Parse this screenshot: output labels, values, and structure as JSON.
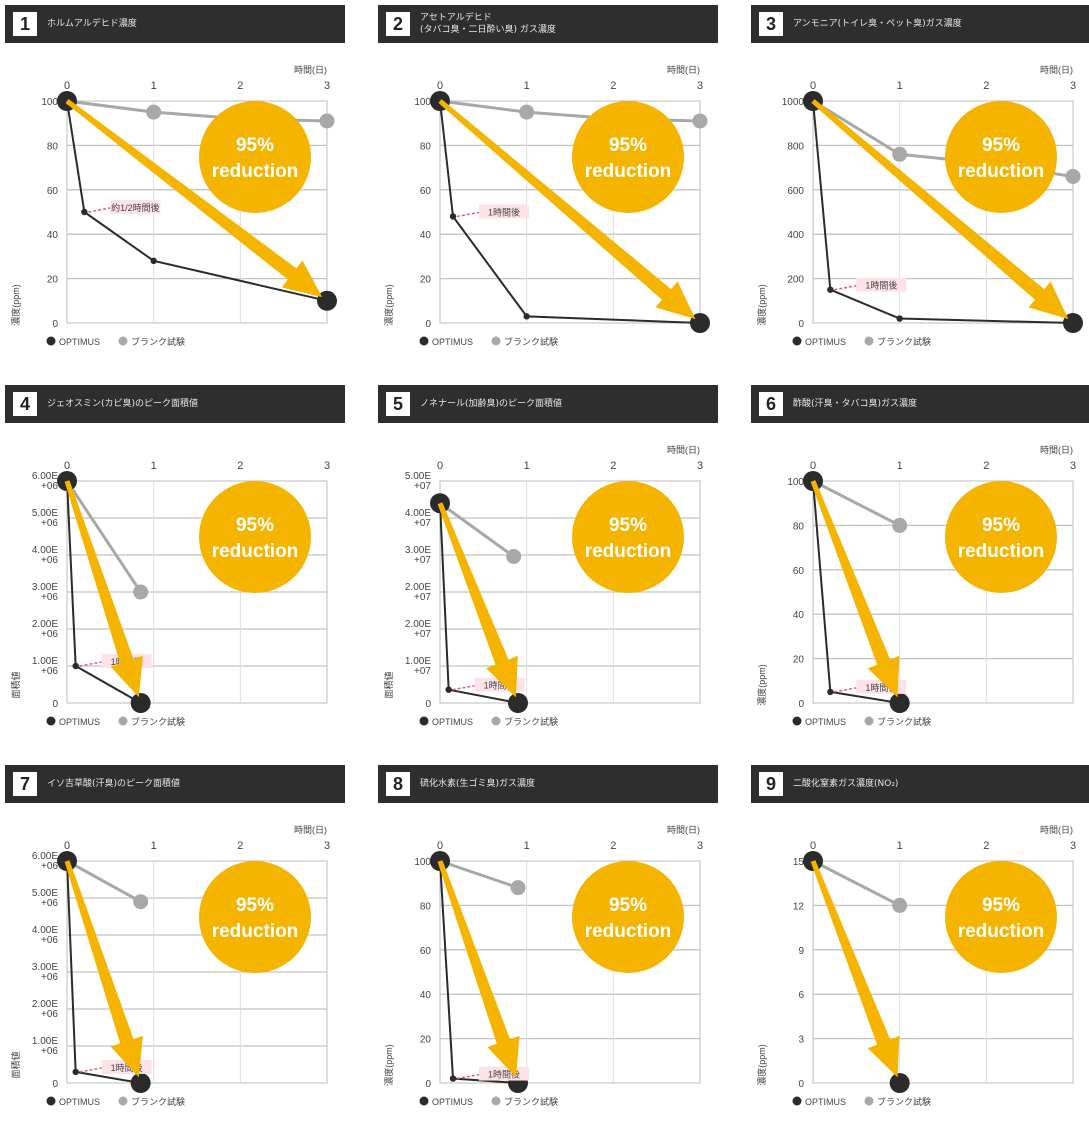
{
  "style": {
    "header_bg": "#2e2e2e",
    "optimus_color": "#2b2b2b",
    "blank_color": "#a8a8a8",
    "accent": "#f5b400",
    "annotation_color": "#e0607a"
  },
  "chart_data": [
    {
      "type": "line",
      "number": "1",
      "title": "ホルムアルデヒド濃度",
      "x": [
        0,
        1,
        2,
        3
      ],
      "x_label": "時間(日)",
      "y_ticks": [
        "100",
        "80",
        "60",
        "40",
        "20",
        "0"
      ],
      "ylim": [
        0,
        100
      ],
      "y_label": "濃度(ppm)",
      "series": [
        {
          "name": "OPTIMUS",
          "x": [
            0,
            0.2,
            1,
            3
          ],
          "values": [
            100,
            50,
            28,
            10
          ]
        },
        {
          "name": "ブランク試験",
          "x": [
            0,
            1,
            2,
            3
          ],
          "values": [
            100,
            95,
            92,
            91
          ]
        }
      ],
      "annotation": "約1/2時間後",
      "badge": [
        "95%",
        "reduction"
      ]
    },
    {
      "type": "line",
      "number": "2",
      "title": "アセトアルデヒド\n(タバコ臭・二日酔い臭) ガス濃度",
      "x": [
        0,
        1,
        2,
        3
      ],
      "x_label": "時間(日)",
      "y_ticks": [
        "100",
        "80",
        "60",
        "40",
        "20",
        "0"
      ],
      "ylim": [
        0,
        100
      ],
      "y_label": "濃度(ppm)",
      "series": [
        {
          "name": "OPTIMUS",
          "x": [
            0,
            0.15,
            1,
            3
          ],
          "values": [
            100,
            48,
            3,
            0
          ]
        },
        {
          "name": "ブランク試験",
          "x": [
            0,
            1,
            2,
            3
          ],
          "values": [
            100,
            95,
            92,
            91
          ]
        }
      ],
      "annotation": "1時間後",
      "badge": [
        "95%",
        "reduction"
      ]
    },
    {
      "type": "line",
      "number": "3",
      "title": "アンモニア(トイレ臭・ペット臭)ガス濃度",
      "x": [
        0,
        1,
        2,
        3
      ],
      "x_label": "時間(日)",
      "y_ticks": [
        "1000",
        "800",
        "600",
        "400",
        "200",
        "0"
      ],
      "ylim": [
        0,
        1000
      ],
      "y_label": "濃度(ppm)",
      "series": [
        {
          "name": "OPTIMUS",
          "x": [
            0,
            0.2,
            1,
            3
          ],
          "values": [
            1000,
            150,
            20,
            0
          ]
        },
        {
          "name": "ブランク試験",
          "x": [
            0,
            1,
            2,
            3
          ],
          "values": [
            1000,
            760,
            720,
            660
          ]
        }
      ],
      "annotation": "1時間後",
      "badge": [
        "95%",
        "reduction"
      ]
    },
    {
      "type": "line",
      "number": "4",
      "title": "ジェオスミン(カビ臭)のピーク面積値",
      "x": [
        0,
        1,
        2,
        3
      ],
      "x_label": "",
      "y_ticks": [
        "6.00E\n+06",
        "5.00E\n+06",
        "4.00E\n+06",
        "3.00E\n+06",
        "2.00E\n+06",
        "1.00E\n+06",
        "0"
      ],
      "ylim": [
        0,
        6000000
      ],
      "y_label": "面積値",
      "series": [
        {
          "name": "OPTIMUS",
          "x": [
            0,
            0.1,
            0.85
          ],
          "values": [
            6000000,
            1000000,
            0
          ]
        },
        {
          "name": "ブランク試験",
          "x": [
            0,
            0.85
          ],
          "values": [
            6000000,
            3000000
          ]
        }
      ],
      "annotation": "1時間後",
      "badge": [
        "95%",
        "reduction"
      ]
    },
    {
      "type": "line",
      "number": "5",
      "title": "ノネナール(加齢臭)のピーク面積値",
      "x": [
        0,
        1,
        2,
        3
      ],
      "x_label": "時間(日)",
      "y_ticks": [
        "5.00E\n+07",
        "4.00E\n+07",
        "3.00E\n+07",
        "2.00E\n+07",
        "2.00E\n+07",
        "1.00E\n+07",
        "0"
      ],
      "ylim": [
        0,
        50000000
      ],
      "y_label": "面積値",
      "series": [
        {
          "name": "OPTIMUS",
          "x": [
            0,
            0.1,
            0.9
          ],
          "values": [
            45000000,
            3000000,
            0
          ]
        },
        {
          "name": "ブランク試験",
          "x": [
            0,
            0.85
          ],
          "values": [
            45000000,
            33000000
          ]
        }
      ],
      "annotation": "1時間後",
      "badge": [
        "95%",
        "reduction"
      ]
    },
    {
      "type": "line",
      "number": "6",
      "title": "酢酸(汗臭・タバコ臭)ガス濃度",
      "x": [
        0,
        1,
        2,
        3
      ],
      "x_label": "時間(日)",
      "y_ticks": [
        "100",
        "80",
        "60",
        "40",
        "20",
        "0"
      ],
      "ylim": [
        0,
        100
      ],
      "y_label": "濃度(ppm)",
      "series": [
        {
          "name": "OPTIMUS",
          "x": [
            0,
            0.2,
            1
          ],
          "values": [
            100,
            5,
            0
          ]
        },
        {
          "name": "ブランク試験",
          "x": [
            0,
            1
          ],
          "values": [
            100,
            80
          ]
        }
      ],
      "annotation": "1時間後",
      "badge": [
        "95%",
        "reduction"
      ]
    },
    {
      "type": "line",
      "number": "7",
      "title": "イソ吉草酸(汗臭)のピーク面積値",
      "x": [
        0,
        1,
        2,
        3
      ],
      "x_label": "時間(日)",
      "y_ticks": [
        "6.00E\n+06",
        "5.00E\n+06",
        "4.00E\n+06",
        "3.00E\n+06",
        "2.00E\n+06",
        "1.00E\n+06",
        "0"
      ],
      "ylim": [
        0,
        6000000
      ],
      "y_label": "面積値",
      "series": [
        {
          "name": "OPTIMUS",
          "x": [
            0,
            0.1,
            0.85
          ],
          "values": [
            6000000,
            300000,
            0
          ]
        },
        {
          "name": "ブランク試験",
          "x": [
            0,
            0.85
          ],
          "values": [
            6000000,
            4900000
          ]
        }
      ],
      "annotation": "1時間後",
      "badge": [
        "95%",
        "reduction"
      ]
    },
    {
      "type": "line",
      "number": "8",
      "title": "硫化水素(生ゴミ臭)ガス濃度",
      "x": [
        0,
        1,
        2,
        3
      ],
      "x_label": "時間(日)",
      "y_ticks": [
        "100",
        "80",
        "60",
        "40",
        "20",
        "0"
      ],
      "ylim": [
        0,
        100
      ],
      "y_label": "濃度(ppm)",
      "series": [
        {
          "name": "OPTIMUS",
          "x": [
            0,
            0.15,
            0.9
          ],
          "values": [
            100,
            2,
            0
          ]
        },
        {
          "name": "ブランク試験",
          "x": [
            0,
            0.9
          ],
          "values": [
            100,
            88
          ]
        }
      ],
      "annotation": "1時間後",
      "badge": [
        "95%",
        "reduction"
      ]
    },
    {
      "type": "line",
      "number": "9",
      "title": "二酸化窒素ガス濃度(NO₂)",
      "x": [
        0,
        1,
        2,
        3
      ],
      "x_label": "時間(日)",
      "y_ticks": [
        "15",
        "12",
        "9",
        "6",
        "3",
        "0"
      ],
      "ylim": [
        0,
        15
      ],
      "y_label": "濃度(ppm)",
      "series": [
        {
          "name": "OPTIMUS",
          "x": [
            0,
            1
          ],
          "values": [
            15,
            0
          ]
        },
        {
          "name": "ブランク試験",
          "x": [
            0,
            1
          ],
          "values": [
            15,
            12
          ]
        }
      ],
      "annotation": "",
      "badge": [
        "95%",
        "reduction"
      ]
    }
  ]
}
